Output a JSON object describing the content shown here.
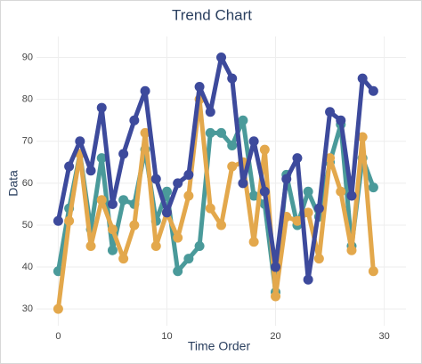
{
  "chart_data": {
    "type": "line",
    "title": "Trend Chart",
    "x_label": "Time Order",
    "y_label": "Data",
    "x": [
      0,
      1,
      2,
      3,
      4,
      5,
      6,
      7,
      8,
      9,
      10,
      11,
      12,
      13,
      14,
      15,
      16,
      17,
      18,
      19,
      20,
      21,
      22,
      23,
      24,
      25,
      26,
      27,
      28,
      29
    ],
    "series": [
      {
        "color": "#4a9a9a",
        "values": [
          39,
          54,
          67,
          49,
          66,
          44,
          56,
          55,
          68,
          51,
          58,
          39,
          42,
          45,
          72,
          72,
          69,
          75,
          57,
          55,
          34,
          62,
          50,
          58,
          52,
          65,
          74,
          45,
          66,
          59
        ]
      },
      {
        "color": "#e3a84c",
        "values": [
          30,
          51,
          67,
          45,
          56,
          49,
          42,
          50,
          72,
          45,
          53,
          47,
          57,
          80,
          54,
          50,
          64,
          65,
          46,
          68,
          33,
          52,
          51,
          53,
          42,
          66,
          58,
          44,
          71,
          39
        ]
      },
      {
        "color": "#3d4a9c",
        "values": [
          51,
          64,
          70,
          63,
          78,
          55,
          67,
          75,
          82,
          61,
          53,
          60,
          62,
          83,
          77,
          90,
          85,
          60,
          70,
          58,
          40,
          61,
          66,
          37,
          54,
          77,
          75,
          57,
          85,
          82
        ]
      }
    ],
    "xlim": [
      -2,
      32
    ],
    "ylim": [
      26,
      95
    ],
    "xticks": [
      0,
      10,
      20,
      30
    ],
    "yticks": [
      30,
      40,
      50,
      60,
      70,
      80,
      90
    ],
    "grid": true
  }
}
